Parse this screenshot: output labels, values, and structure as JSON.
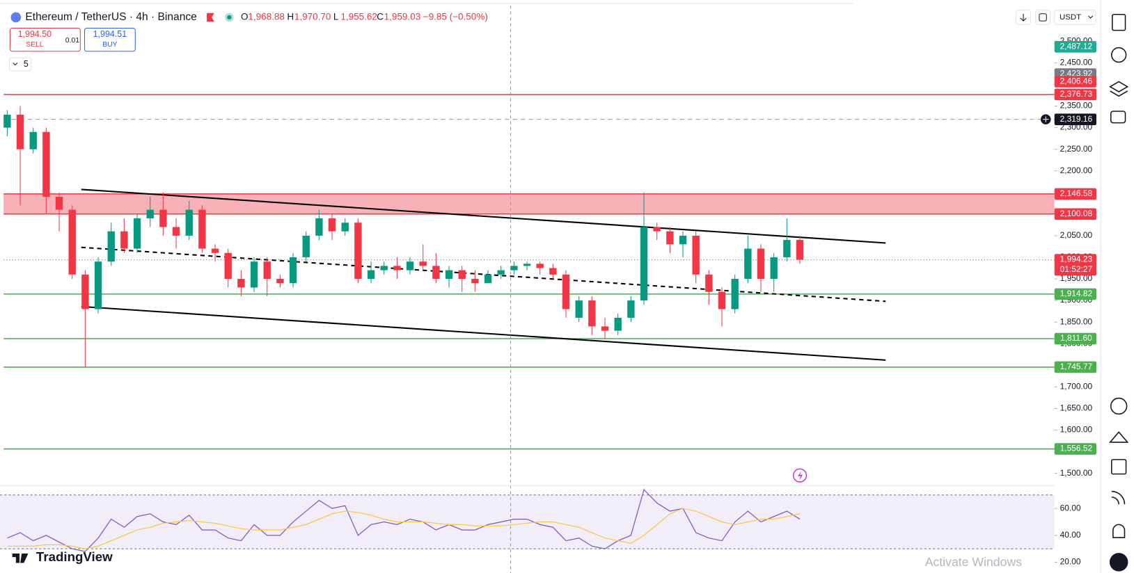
{
  "toolbar": {
    "symbol": "Ethereum / TetherUS · 4h · Binance",
    "ohlc": [
      {
        "key": "O",
        "value": "1,968.88"
      },
      {
        "key": "H",
        "value": "1,970.70"
      },
      {
        "key": "L",
        "value": "1,955.62"
      },
      {
        "key": "C",
        "value": "1,959.03"
      }
    ],
    "change": "−9.85 (−0.50%)",
    "sell_price": "1,994.50",
    "sell": "SELL",
    "spread": "0.01",
    "buy_price": "1,994.51",
    "buy": "BUY",
    "indicators": "5",
    "currency": "USDT"
  },
  "chart_data": [
    {
      "type": "candlestick",
      "ylim": [
        1475,
        2582
      ],
      "yticks": [
        {
          "value": 2500,
          "label": "2,500.00"
        },
        {
          "value": 2450,
          "label": "2,450.00"
        },
        {
          "value": 2400,
          "label": "2,400.00"
        },
        {
          "value": 2350,
          "label": "2,350.00"
        },
        {
          "value": 2300,
          "label": "2,300.00"
        },
        {
          "value": 2250,
          "label": "2,250.00"
        },
        {
          "value": 2200,
          "label": "2,200.00"
        },
        {
          "value": 2150,
          "label": "2,150.00"
        },
        {
          "value": 2100,
          "label": "2,100.00"
        },
        {
          "value": 2050,
          "label": "2,050.00"
        },
        {
          "value": 2000,
          "label": "2,000.00"
        },
        {
          "value": 1950,
          "label": "1,950.00"
        },
        {
          "value": 1900,
          "label": "1,900.00"
        },
        {
          "value": 1850,
          "label": "1,850.00"
        },
        {
          "value": 1800,
          "label": "1,800.00"
        },
        {
          "value": 1750,
          "label": "1,750.00"
        },
        {
          "value": 1700,
          "label": "1,700.00"
        },
        {
          "value": 1650,
          "label": "1,650.00"
        },
        {
          "value": 1600,
          "label": "1,600.00"
        },
        {
          "value": 1550,
          "label": "1,550.00"
        },
        {
          "value": 1500,
          "label": "1,500.00"
        }
      ],
      "up_color": "#089981",
      "down_color": "#f23645",
      "candles": {
        "open": [
          2300,
          2330,
          2250,
          2290,
          2140,
          2110,
          1960,
          1880,
          1990,
          2060,
          2020,
          2090,
          2110,
          2070,
          2050,
          2110,
          2020,
          2010,
          1950,
          1930,
          1990,
          1950,
          1940,
          2000,
          2050,
          2090,
          2060,
          2080,
          1950,
          1970,
          1980,
          1970,
          1990,
          1980,
          1950,
          1970,
          1950,
          1940,
          1960,
          1970,
          1980,
          1985,
          1975,
          1960,
          1860,
          1900,
          1840,
          1830,
          1860,
          1900,
          2070,
          2060,
          2030,
          2050,
          1960,
          1920,
          1880,
          1950,
          2020,
          1950,
          2000,
          2040
        ],
        "high": [
          2340,
          2350,
          2300,
          2300,
          2150,
          2120,
          1970,
          2000,
          2080,
          2090,
          2100,
          2140,
          2150,
          2090,
          2130,
          2120,
          2030,
          2020,
          1970,
          2000,
          2000,
          1960,
          2010,
          2060,
          2110,
          2100,
          2090,
          2090,
          1990,
          1990,
          2000,
          2000,
          2030,
          2010,
          1980,
          1980,
          1970,
          1970,
          1980,
          1990,
          1990,
          1990,
          1985,
          1970,
          1910,
          1910,
          1860,
          1870,
          1910,
          2150,
          2080,
          2070,
          2060,
          2060,
          1970,
          1930,
          1960,
          2050,
          2030,
          2010,
          2090,
          2050
        ],
        "low": [
          2280,
          2120,
          2240,
          2100,
          2060,
          1950,
          1745.77,
          1870,
          1980,
          2010,
          2010,
          2070,
          2050,
          2020,
          2040,
          2010,
          1990,
          1930,
          1910,
          1920,
          1910,
          1930,
          1930,
          1990,
          2040,
          2040,
          2050,
          1940,
          1940,
          1960,
          1950,
          1960,
          1970,
          1940,
          1930,
          1920,
          1920,
          1940,
          1950,
          1960,
          1970,
          1960,
          1950,
          1860,
          1850,
          1820,
          1810,
          1820,
          1850,
          1890,
          2040,
          2010,
          2000,
          1940,
          1890,
          1840,
          1870,
          1940,
          1920,
          1920,
          1990,
          1985
        ],
        "close": [
          2330,
          2250,
          2290,
          2140,
          2110,
          1960,
          1880,
          1990,
          2060,
          2020,
          2090,
          2110,
          2070,
          2050,
          2110,
          2020,
          2010,
          1950,
          1930,
          1990,
          1950,
          1940,
          2000,
          2050,
          2090,
          2060,
          2080,
          1950,
          1970,
          1980,
          1970,
          1990,
          1980,
          1950,
          1970,
          1950,
          1940,
          1960,
          1970,
          1980,
          1985,
          1975,
          1960,
          1880,
          1900,
          1840,
          1830,
          1860,
          1900,
          2070,
          2060,
          2030,
          2050,
          1960,
          1920,
          1880,
          1950,
          2020,
          1950,
          2000,
          2040,
          1994.23
        ]
      },
      "zone": {
        "low": 2100.08,
        "high": 2146.58,
        "color": "#f7a8ae"
      },
      "trendlines": [
        {
          "x": [
            5.7,
            67.6
          ],
          "y": [
            2157,
            2033
          ],
          "style": "solid"
        },
        {
          "x": [
            5.7,
            67.6
          ],
          "y": [
            2023,
            1898
          ],
          "style": "dashed"
        },
        {
          "x": [
            5.7,
            67.6
          ],
          "y": [
            1886,
            1762
          ],
          "style": "solid"
        }
      ],
      "levels": [
        {
          "value": 2487.12,
          "label": "2,487.12",
          "color": "#22ab94",
          "line": "none"
        },
        {
          "value": 2423.92,
          "label": "2,423.92",
          "color": "#787b86",
          "line": "none"
        },
        {
          "value": 2406.46,
          "label": "2,406.46",
          "color": "#f23645",
          "line": "none"
        },
        {
          "value": 2376.73,
          "label": "2,376.73",
          "color": "#f23645",
          "line": "solid"
        },
        {
          "value": 2319.16,
          "label": "2,319.16",
          "color": "#131722",
          "line": "dashed",
          "line_color": "#9598a1"
        },
        {
          "value": 2146.58,
          "label": "2,146.58",
          "color": "#f23645",
          "line": "solid"
        },
        {
          "value": 2100.08,
          "label": "2,100.08",
          "color": "#f23645",
          "line": "solid"
        },
        {
          "value": 1994.23,
          "label": "1,994.23",
          "color": "#f23645",
          "line": "dotted",
          "countdown": "01:52:27"
        },
        {
          "value": 1914.82,
          "label": "1,914.82",
          "color": "#4caf50",
          "line": "solid"
        },
        {
          "value": 1811.6,
          "label": "1,811.60",
          "color": "#4caf50",
          "line": "solid"
        },
        {
          "value": 1745.77,
          "label": "1,745.77",
          "color": "#4caf50",
          "line": "solid"
        },
        {
          "value": 1556.52,
          "label": "1,556.52",
          "color": "#4caf50",
          "line": "solid"
        }
      ]
    },
    {
      "type": "line",
      "ylim": [
        12,
        77
      ],
      "yticks": [
        {
          "value": 60,
          "label": "60.00"
        },
        {
          "value": 40,
          "label": "40.00"
        },
        {
          "value": 20,
          "label": "20.00"
        }
      ],
      "bands": [
        30,
        70
      ],
      "series": [
        {
          "color": "#7e57c2",
          "values": [
            38,
            42,
            36,
            40,
            35,
            30,
            28,
            38,
            52,
            46,
            54,
            56,
            50,
            48,
            55,
            44,
            44,
            38,
            36,
            48,
            40,
            40,
            50,
            58,
            66,
            60,
            62,
            40,
            48,
            50,
            48,
            52,
            50,
            44,
            48,
            44,
            44,
            48,
            50,
            52,
            52,
            48,
            46,
            36,
            38,
            32,
            30,
            36,
            40,
            74,
            64,
            58,
            60,
            42,
            38,
            36,
            50,
            58,
            50,
            54,
            58,
            52
          ]
        },
        {
          "color": "#f7c948",
          "values": [
            32,
            32,
            32,
            33,
            33,
            32,
            30,
            32,
            36,
            40,
            44,
            46,
            49,
            50,
            51,
            50,
            49,
            47,
            45,
            44,
            44,
            44,
            46,
            48,
            52,
            56,
            58,
            57,
            55,
            52,
            50,
            50,
            50,
            49,
            48,
            48,
            47,
            47,
            47,
            48,
            49,
            50,
            50,
            48,
            46,
            42,
            38,
            36,
            34,
            40,
            48,
            56,
            60,
            58,
            54,
            50,
            48,
            50,
            52,
            52,
            54,
            56
          ]
        }
      ]
    }
  ],
  "branding": "TradingView",
  "watermark": "Activate Windows"
}
